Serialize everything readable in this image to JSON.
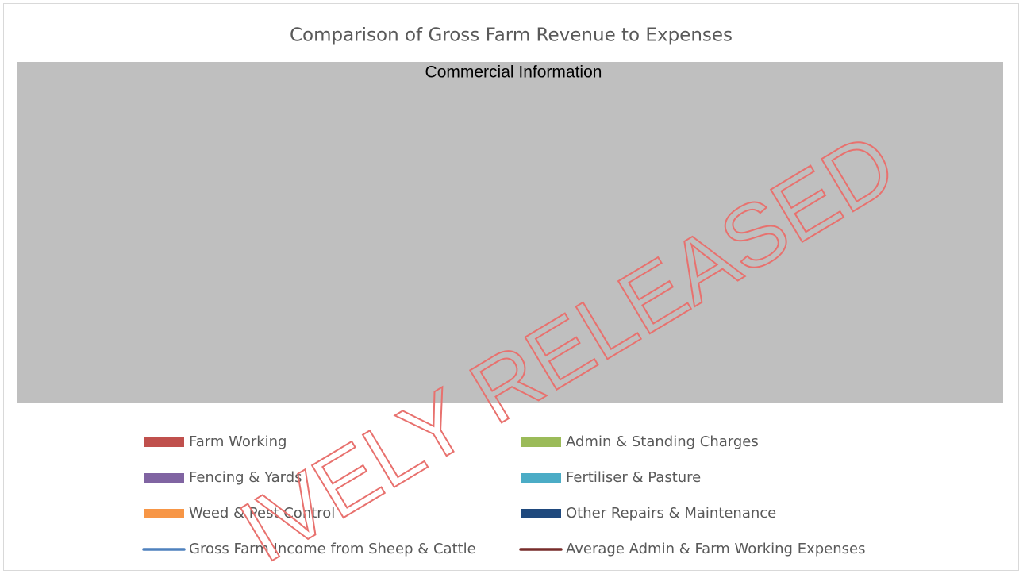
{
  "chart_data": {
    "type": "bar",
    "title": "Comparison of Gross Farm Revenue to Expenses",
    "annotation": "Commercial Information",
    "watermark": "IVELY RELEASED",
    "series": [
      {
        "name": "Farm Working",
        "color": "#c0504d",
        "kind": "bar"
      },
      {
        "name": "Admin & Standing Charges",
        "color": "#9bbb59",
        "kind": "bar"
      },
      {
        "name": "Fencing & Yards",
        "color": "#8064a2",
        "kind": "bar"
      },
      {
        "name": "Fertiliser & Pasture",
        "color": "#4bacc6",
        "kind": "bar"
      },
      {
        "name": "Weed & Pest Control",
        "color": "#f79646",
        "kind": "bar"
      },
      {
        "name": "Other Repairs & Maintenance",
        "color": "#1f497d",
        "kind": "bar"
      },
      {
        "name": "Gross Farm Income from Sheep & Cattle",
        "color": "#4f81bd",
        "kind": "line"
      },
      {
        "name": "Average Admin & Farm Working Expenses",
        "color": "#772c2a",
        "kind": "line"
      }
    ],
    "legend": "bottom"
  }
}
